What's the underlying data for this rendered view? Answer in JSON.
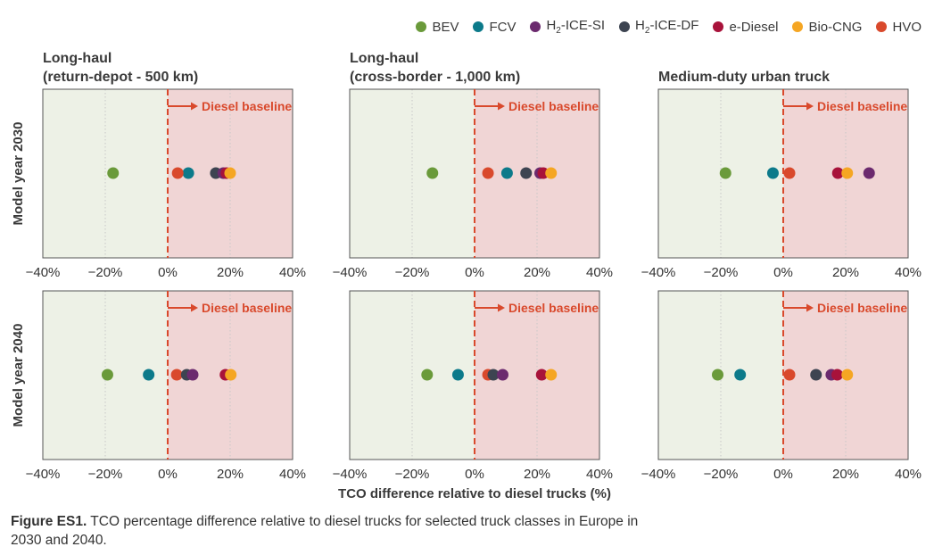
{
  "legend": [
    {
      "key": "BEV",
      "label": "BEV",
      "sub": "",
      "after": "",
      "color": "#6a9a3a"
    },
    {
      "key": "FCV",
      "label": "FCV",
      "sub": "",
      "after": "",
      "color": "#0c7a8a"
    },
    {
      "key": "H2SI",
      "label": "H",
      "sub": "2",
      "after": "-ICE-SI",
      "color": "#6b2a6e"
    },
    {
      "key": "H2DF",
      "label": "H",
      "sub": "2",
      "after": "-ICE-DF",
      "color": "#3d4451"
    },
    {
      "key": "eDiesel",
      "label": "e-Diesel",
      "sub": "",
      "after": "",
      "color": "#a8123a"
    },
    {
      "key": "BioCNG",
      "label": "Bio-CNG",
      "sub": "",
      "after": "",
      "color": "#f5a623"
    },
    {
      "key": "HVO",
      "label": "HVO",
      "sub": "",
      "after": "",
      "color": "#d9492c"
    }
  ],
  "row_labels": [
    "Model year 2030",
    "Model year 2040"
  ],
  "baseline_label": "Diesel baseline",
  "x_axis_label": "TCO difference relative to diesel trucks (%)",
  "x_ticks": [
    "−40%",
    "−20%",
    "0%",
    "20%",
    "40%"
  ],
  "caption": {
    "bold": "Figure ES1.",
    "text": " TCO percentage difference relative to diesel trucks for selected truck classes in Europe in 2030 and 2040."
  },
  "colors": {
    "negative_bg": "#edf1e6",
    "positive_bg": "#f0d5d5",
    "baseline": "#d9492c",
    "grid": "#c8c8c8"
  },
  "chart_data": {
    "type": "scatter",
    "xlim": [
      -40,
      40
    ],
    "columns": [
      {
        "title_line1": "Long-haul",
        "title_line2": "(return-depot - 500 km)"
      },
      {
        "title_line1": "Long-haul",
        "title_line2": "(cross-border  - 1,000 km)"
      },
      {
        "title_line1": "",
        "title_line2": "Medium-duty urban truck"
      }
    ],
    "panels": [
      {
        "row": 0,
        "col": 0,
        "points": {
          "BEV": -17.5,
          "HVO": 3.2,
          "FCV": 6.6,
          "H2DF": 15.4,
          "H2SI": 17.8,
          "eDiesel": 18.8,
          "BioCNG": 20.0
        }
      },
      {
        "row": 0,
        "col": 1,
        "points": {
          "BEV": -13.5,
          "HVO": 4.3,
          "FCV": 10.4,
          "H2DF": 16.5,
          "H2SI": 21.0,
          "eDiesel": 22.0,
          "BioCNG": 24.5
        }
      },
      {
        "row": 0,
        "col": 2,
        "points": {
          "BEV": -18.5,
          "FCV": -3.3,
          "HVO": 2.0,
          "eDiesel": 17.5,
          "BioCNG": 20.5,
          "H2SI": 27.5
        }
      },
      {
        "row": 1,
        "col": 0,
        "points": {
          "BEV": -19.3,
          "FCV": -6.1,
          "HVO": 2.9,
          "H2DF": 6.1,
          "H2SI": 8.0,
          "eDiesel": 18.5,
          "BioCNG": 20.2
        }
      },
      {
        "row": 1,
        "col": 1,
        "points": {
          "BEV": -15.2,
          "FCV": -5.3,
          "HVO": 4.3,
          "H2DF": 6.0,
          "H2SI": 9.0,
          "eDiesel": 21.5,
          "BioCNG": 24.5
        }
      },
      {
        "row": 1,
        "col": 2,
        "points": {
          "BEV": -21.0,
          "FCV": -13.8,
          "HVO": 2.0,
          "H2DF": 10.5,
          "H2SI": 15.4,
          "eDiesel": 17.3,
          "BioCNG": 20.5
        }
      }
    ]
  }
}
